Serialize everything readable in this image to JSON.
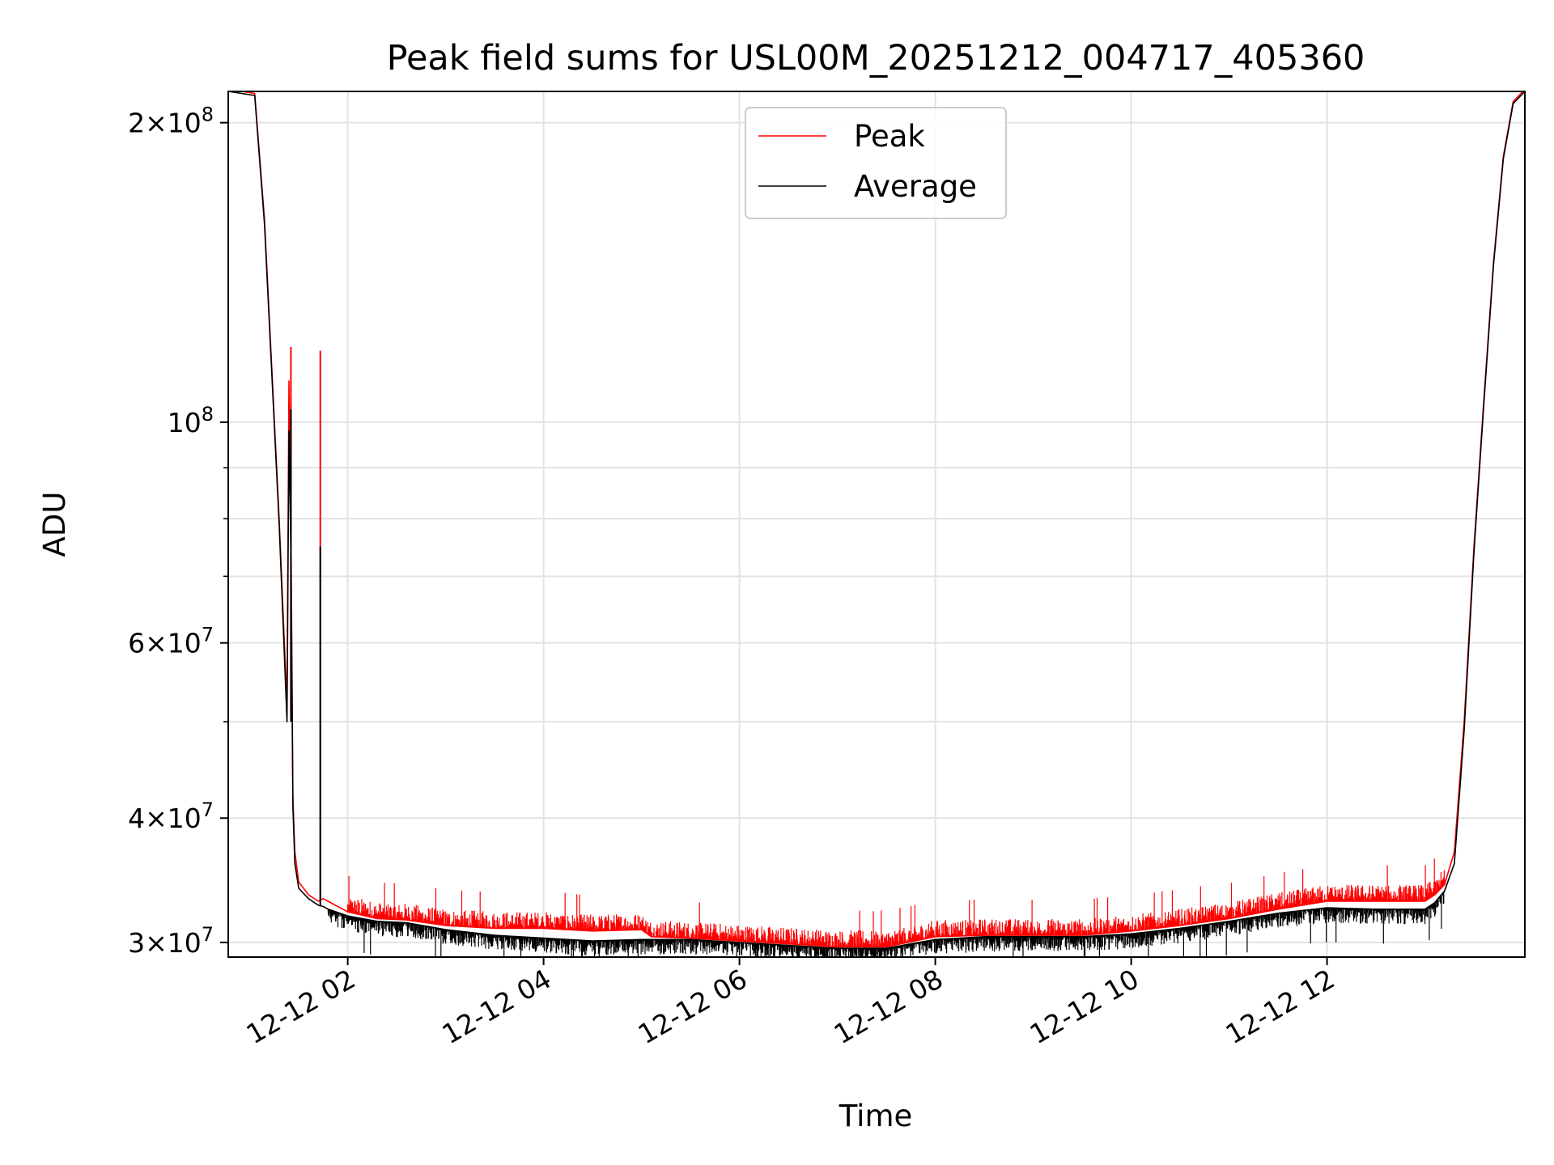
{
  "chart_data": {
    "type": "line",
    "title": "Peak field sums for USL00M_20251212_004717_405360",
    "xlabel": "Time",
    "ylabel": "ADU",
    "yscale": "log",
    "grid": true,
    "legend_position": "upper-center",
    "xlim_hours": [
      0.78,
      14.02
    ],
    "ylim": [
      29000000,
      215000000
    ],
    "x_ticks": [
      {
        "value": 2,
        "label": "12-12 02"
      },
      {
        "value": 4,
        "label": "12-12 04"
      },
      {
        "value": 6,
        "label": "12-12 06"
      },
      {
        "value": 8,
        "label": "12-12 08"
      },
      {
        "value": 10,
        "label": "12-12 10"
      },
      {
        "value": 12,
        "label": "12-12 12"
      }
    ],
    "y_major_ticks": [
      {
        "value": 30000000,
        "mant": "3",
        "exp": "7"
      },
      {
        "value": 40000000,
        "mant": "4",
        "exp": "7"
      },
      {
        "value": 60000000,
        "mant": "6",
        "exp": "7"
      },
      {
        "value": 100000000,
        "mant": "",
        "exp": "8"
      },
      {
        "value": 200000000,
        "mant": "2",
        "exp": "8"
      }
    ],
    "y_minor_ticks": [
      50000000,
      70000000,
      80000000,
      90000000
    ],
    "series": [
      {
        "name": "Peak",
        "color": "#ff0000",
        "x": [
          0.78,
          1.05,
          1.15,
          1.3,
          1.38,
          1.4,
          1.42,
          1.44,
          1.46,
          1.5,
          1.6,
          1.7,
          1.75,
          1.8,
          2.0,
          2.3,
          2.6,
          3.0,
          3.5,
          4.0,
          4.5,
          5.0,
          5.1,
          5.5,
          6.0,
          6.5,
          7.0,
          7.5,
          8.0,
          8.5,
          9.0,
          9.5,
          10.0,
          10.5,
          11.0,
          11.5,
          12.0,
          12.5,
          13.0,
          13.1,
          13.2,
          13.3,
          13.4,
          13.5,
          13.6,
          13.7,
          13.8,
          13.9,
          14.02
        ],
        "values": [
          216000000,
          214000000,
          160000000,
          80000000,
          52000000,
          110000000,
          80000000,
          42000000,
          37000000,
          34500000,
          33500000,
          33000000,
          33200000,
          33000000,
          32200000,
          31700000,
          31600000,
          31200000,
          31000000,
          31000000,
          30800000,
          30900000,
          30400000,
          30300000,
          30100000,
          29900000,
          29700000,
          29700000,
          30400000,
          30500000,
          30500000,
          30500000,
          30800000,
          31200000,
          31700000,
          32400000,
          33000000,
          33000000,
          33000000,
          33500000,
          34300000,
          37000000,
          50000000,
          75000000,
          105000000,
          145000000,
          185000000,
          210000000,
          216000000
        ]
      },
      {
        "name": "Average",
        "color": "#000000",
        "x": [
          0.78,
          1.05,
          1.15,
          1.3,
          1.38,
          1.4,
          1.42,
          1.44,
          1.46,
          1.5,
          1.6,
          1.7,
          1.75,
          1.8,
          2.0,
          2.3,
          2.6,
          3.0,
          3.5,
          4.0,
          4.5,
          5.0,
          5.1,
          5.5,
          6.0,
          6.5,
          7.0,
          7.5,
          8.0,
          8.5,
          9.0,
          9.5,
          10.0,
          10.5,
          11.0,
          11.5,
          12.0,
          12.5,
          13.0,
          13.1,
          13.2,
          13.3,
          13.4,
          13.5,
          13.6,
          13.7,
          13.8,
          13.9,
          14.02
        ],
        "values": [
          215000000,
          213000000,
          158000000,
          79000000,
          50000000,
          98000000,
          74000000,
          41000000,
          36000000,
          34000000,
          33200000,
          32700000,
          32600000,
          32400000,
          31900000,
          31500000,
          31400000,
          30900000,
          30500000,
          30300000,
          30100000,
          30200000,
          30200000,
          30200000,
          30000000,
          29800000,
          29600000,
          29600000,
          30200000,
          30400000,
          30400000,
          30400000,
          30600000,
          31000000,
          31500000,
          32100000,
          32500000,
          32400000,
          32400000,
          32900000,
          33800000,
          36000000,
          49000000,
          74000000,
          104000000,
          144000000,
          184000000,
          209000000,
          215000000
        ]
      }
    ],
    "spikes": [
      {
        "series": "Peak",
        "x": 1.42,
        "bottom": 52000000,
        "top": 119000000
      },
      {
        "series": "Peak",
        "x": 1.72,
        "bottom": 33000000,
        "top": 118000000
      },
      {
        "series": "Average",
        "x": 1.42,
        "bottom": 50000000,
        "top": 103000000
      },
      {
        "series": "Average",
        "x": 1.72,
        "bottom": 32600000,
        "top": 75000000
      }
    ],
    "noise": {
      "Peak": {
        "from": 2.0,
        "to": 13.2,
        "direction": "up",
        "amplitude": 0.04
      },
      "Average": {
        "from": 1.8,
        "to": 13.2,
        "direction": "down",
        "amplitude": 0.035
      }
    }
  }
}
